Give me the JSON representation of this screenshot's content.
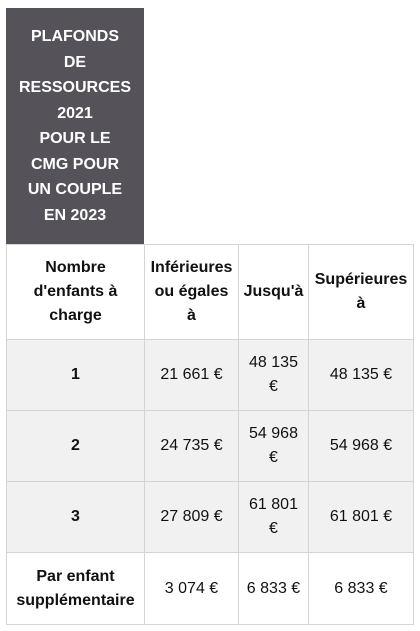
{
  "title": "PLAFONDS\nDE\nRESSOURCES\n2021\nPOUR LE\nCMG POUR\nUN COUPLE\nEN 2023",
  "table": {
    "headers": [
      "Nombre d'enfants à charge",
      "Inférieures ou égales à",
      "Jusqu'à",
      "Supérieures à"
    ],
    "rows": [
      {
        "label": "1",
        "inf": "21 661 €",
        "jusqua": "48 135 €",
        "sup": "48 135 €"
      },
      {
        "label": "2",
        "inf": "24 735 €",
        "jusqua": "54 968 €",
        "sup": "54 968 €"
      },
      {
        "label": "3",
        "inf": "27 809 €",
        "jusqua": "61 801 €",
        "sup": "61 801 €"
      },
      {
        "label": "Par enfant supplémentaire",
        "inf": "3 074 €",
        "jusqua": "6 833 €",
        "sup": "6 833 €"
      }
    ]
  }
}
